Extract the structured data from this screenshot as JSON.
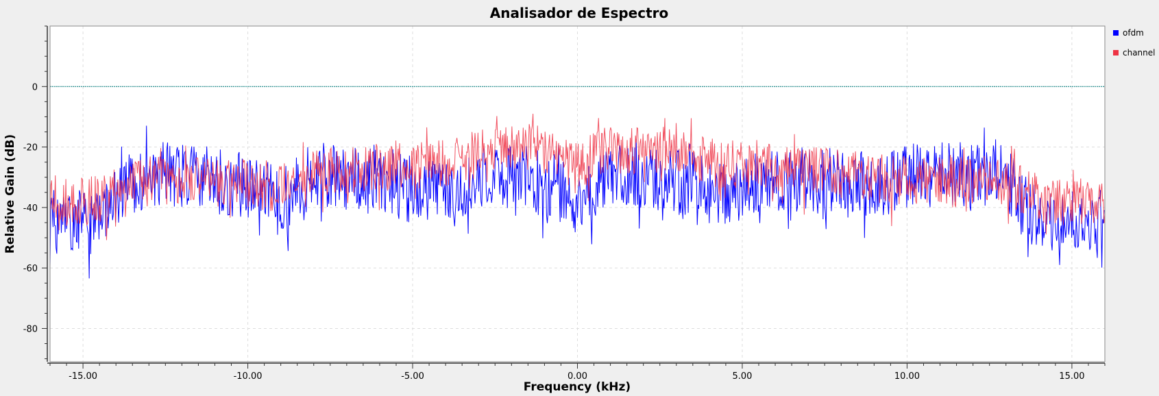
{
  "chart_data": {
    "type": "line",
    "title": "Analisador de Espectro",
    "xlabel": "Frequency (kHz)",
    "ylabel": "Relative Gain (dB)",
    "xlim": [
      -16.0,
      16.0
    ],
    "ylim": [
      -91,
      20
    ],
    "xticks": [
      -15,
      -10,
      -5,
      0,
      5,
      10,
      15
    ],
    "xtick_labels": [
      "-15.00",
      "-10.00",
      "-5.00",
      "0.00",
      "5.00",
      "10.00",
      "15.00"
    ],
    "yticks": [
      0,
      -20,
      -40,
      -60,
      -80
    ],
    "ytick_labels": [
      "0",
      "-20",
      "-40",
      "-60",
      "-80"
    ],
    "grid": true,
    "legend_position": "top-right",
    "reference_line": {
      "y": 0,
      "color": "#1a8a8a"
    },
    "series": [
      {
        "name": "ofdm",
        "color": "#0000ff",
        "envelope": {
          "x": [
            -16,
            -15.5,
            -15,
            -14.5,
            -14,
            -13.5,
            -13,
            -12.5,
            -12,
            -11.5,
            -11,
            -10.5,
            -10,
            -9.5,
            -9,
            -8.5,
            -8,
            -7.5,
            -7,
            -6.5,
            -6,
            -5.5,
            -5,
            -4.5,
            -4,
            -3.5,
            -3,
            -2.5,
            -2,
            -1.5,
            -1,
            -0.5,
            0,
            0.5,
            1,
            1.5,
            2,
            2.5,
            3,
            3.5,
            4,
            4.5,
            5,
            5.5,
            6,
            6.5,
            7,
            7.5,
            8,
            8.5,
            9,
            9.5,
            10,
            10.5,
            11,
            11.5,
            12,
            12.5,
            13,
            13.5,
            14,
            14.5,
            15,
            15.5,
            16
          ],
          "mean_db": [
            -44,
            -45,
            -45,
            -44,
            -36,
            -31,
            -29,
            -29,
            -29,
            -30,
            -31,
            -32,
            -33,
            -35,
            -38,
            -33,
            -29,
            -29,
            -30,
            -31,
            -32,
            -33,
            -34,
            -35,
            -35,
            -33,
            -31,
            -30,
            -30,
            -31,
            -32,
            -34,
            -38,
            -34,
            -31,
            -30,
            -30,
            -30,
            -31,
            -32,
            -35,
            -35,
            -33,
            -32,
            -31,
            -31,
            -31,
            -31,
            -32,
            -33,
            -34,
            -32,
            -29,
            -29,
            -29,
            -29,
            -29,
            -29,
            -30,
            -39,
            -44,
            -45,
            -45,
            -45,
            -45
          ]
        }
      },
      {
        "name": "channel",
        "color": "#ee3344",
        "envelope": {
          "x": [
            -16,
            -15.5,
            -15,
            -14.5,
            -14,
            -13.5,
            -13,
            -12.5,
            -12,
            -11.5,
            -11,
            -10.5,
            -10,
            -9.5,
            -9,
            -8.5,
            -8,
            -7.5,
            -7,
            -6.5,
            -6,
            -5.5,
            -5,
            -4.5,
            -4,
            -3.5,
            -3,
            -2.5,
            -2,
            -1.5,
            -1,
            -0.5,
            0,
            0.5,
            1,
            1.5,
            2,
            2.5,
            3,
            3.5,
            4,
            4.5,
            5,
            5.5,
            6,
            6.5,
            7,
            7.5,
            8,
            8.5,
            9,
            9.5,
            10,
            10.5,
            11,
            11.5,
            12,
            12.5,
            13,
            13.5,
            14,
            14.5,
            15,
            15.5,
            16
          ],
          "mean_db": [
            -37,
            -38,
            -38,
            -37,
            -34,
            -32,
            -31,
            -31,
            -31,
            -31,
            -32,
            -32,
            -32,
            -33,
            -34,
            -31,
            -28,
            -28,
            -28,
            -27,
            -27,
            -26,
            -26,
            -26,
            -25,
            -24,
            -22,
            -21,
            -20,
            -20,
            -21,
            -23,
            -27,
            -23,
            -21,
            -21,
            -21,
            -21,
            -22,
            -23,
            -25,
            -26,
            -26,
            -26,
            -27,
            -27,
            -28,
            -28,
            -29,
            -29,
            -30,
            -31,
            -31,
            -31,
            -31,
            -31,
            -31,
            -31,
            -31,
            -34,
            -37,
            -38,
            -38,
            -38,
            -38
          ]
        }
      }
    ]
  }
}
